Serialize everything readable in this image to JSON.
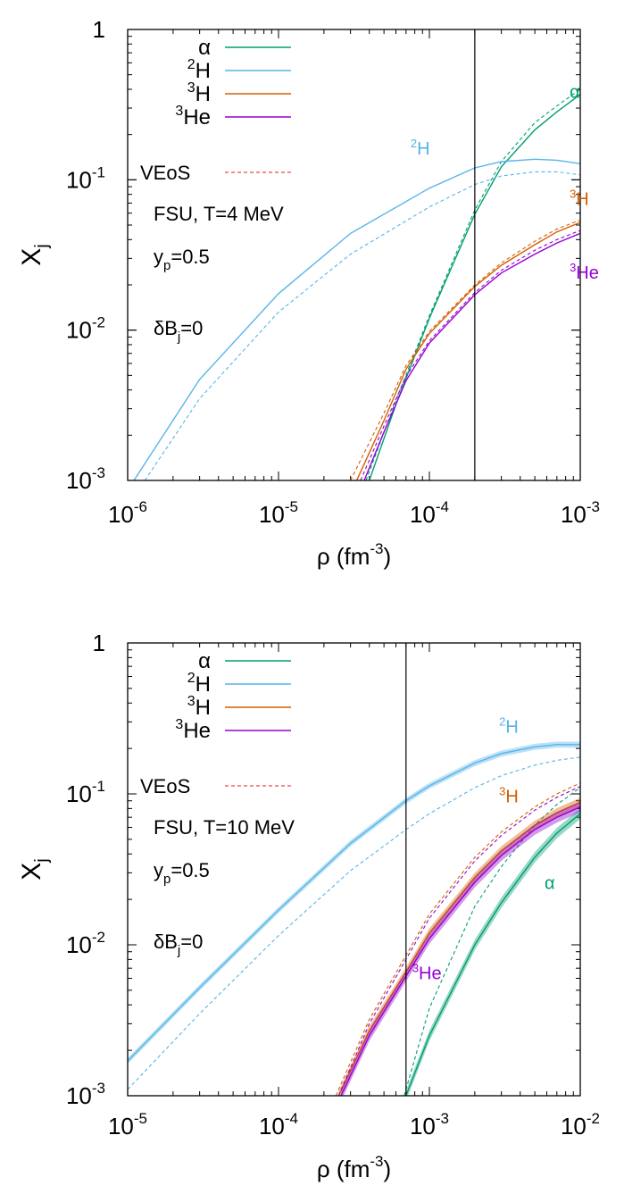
{
  "chart_data": [
    {
      "type": "line",
      "xscale": "log",
      "yscale": "log",
      "xlim": [
        1e-06,
        0.001
      ],
      "ylim": [
        0.001,
        1
      ],
      "xlabel": "ρ (fm",
      "xlabel_exp": "-3",
      "xlabel_close": ")",
      "ylabel": "X",
      "ylabel_sub": "j",
      "x_ticks": [
        {
          "base": "10",
          "exp": "-6"
        },
        {
          "base": "10",
          "exp": "-5"
        },
        {
          "base": "10",
          "exp": "-4"
        },
        {
          "base": "10",
          "exp": "-3"
        }
      ],
      "y_ticks": [
        {
          "base": "10",
          "exp": "-3"
        },
        {
          "base": "10",
          "exp": "-2"
        },
        {
          "base": "10",
          "exp": "-1"
        },
        {
          "base": "1",
          "exp": ""
        }
      ],
      "vline_x": 0.0002,
      "legend": [
        {
          "sup": "",
          "name": "α",
          "color": "#009e73"
        },
        {
          "sup": "2",
          "name": "H",
          "color": "#56b4e9"
        },
        {
          "sup": "3",
          "name": "H",
          "color": "#d55e00"
        },
        {
          "sup": "3",
          "name": "He",
          "color": "#9400d3"
        }
      ],
      "legend_placement": "top-left",
      "veos_label": "VEoS",
      "veos_color": "#e41a1c",
      "annotations": {
        "model": "FSU, T=4 MeV",
        "yp_main": "y",
        "yp_sub": "p",
        "yp_val": "=0.5",
        "db_main": "δB",
        "db_sub": "j",
        "db_val": "=0"
      },
      "series_labels": [
        {
          "sup": "",
          "name": "α",
          "color": "#009e73",
          "x": 0.00085,
          "y": 0.35
        },
        {
          "sup": "2",
          "name": "H",
          "color": "#56b4e9",
          "x": 7.5e-05,
          "y": 0.147
        },
        {
          "sup": "3",
          "name": "H",
          "color": "#d55e00",
          "x": 0.00085,
          "y": 0.068
        },
        {
          "sup": "3",
          "name": "He",
          "color": "#9400d3",
          "x": 0.00085,
          "y": 0.022
        }
      ],
      "series": [
        {
          "name": "α",
          "color": "#009e73",
          "style": "solid",
          "band": 0,
          "points": [
            [
              4e-05,
              0.001
            ],
            [
              6e-05,
              0.0032
            ],
            [
              0.0001,
              0.012
            ],
            [
              0.0002,
              0.059
            ],
            [
              0.0003,
              0.122
            ],
            [
              0.0005,
              0.215
            ],
            [
              0.0007,
              0.283
            ],
            [
              0.001,
              0.37
            ]
          ]
        },
        {
          "name": "α",
          "color": "#009e73",
          "style": "dashed",
          "band": 0,
          "points": [
            [
              3.8e-05,
              0.001
            ],
            [
              6e-05,
              0.0034
            ],
            [
              0.0001,
              0.0125
            ],
            [
              0.0002,
              0.063
            ],
            [
              0.0003,
              0.132
            ],
            [
              0.0005,
              0.24
            ],
            [
              0.0007,
              0.31
            ],
            [
              0.001,
              0.4
            ]
          ]
        },
        {
          "name": "2H",
          "color": "#56b4e9",
          "style": "solid",
          "band": 0,
          "points": [
            [
              1.1e-06,
              0.001
            ],
            [
              3e-06,
              0.0047
            ],
            [
              1e-05,
              0.0175
            ],
            [
              3e-05,
              0.044
            ],
            [
              0.0001,
              0.088
            ],
            [
              0.0002,
              0.12
            ],
            [
              0.0003,
              0.132
            ],
            [
              0.0005,
              0.137
            ],
            [
              0.0007,
              0.135
            ],
            [
              0.001,
              0.128
            ]
          ]
        },
        {
          "name": "2H",
          "color": "#56b4e9",
          "style": "dashed",
          "band": 0,
          "points": [
            [
              1.3e-06,
              0.001
            ],
            [
              3e-06,
              0.0035
            ],
            [
              1e-05,
              0.0132
            ],
            [
              3e-05,
              0.032
            ],
            [
              0.0001,
              0.066
            ],
            [
              0.0002,
              0.093
            ],
            [
              0.0003,
              0.106
            ],
            [
              0.0005,
              0.113
            ],
            [
              0.0007,
              0.113
            ],
            [
              0.001,
              0.108
            ]
          ]
        },
        {
          "name": "3H",
          "color": "#d55e00",
          "style": "solid",
          "band": 0,
          "points": [
            [
              3.3e-05,
              0.001
            ],
            [
              5e-05,
              0.0025
            ],
            [
              7e-05,
              0.0055
            ],
            [
              0.0001,
              0.0095
            ],
            [
              0.0002,
              0.0195
            ],
            [
              0.0003,
              0.027
            ],
            [
              0.0005,
              0.037
            ],
            [
              0.0007,
              0.045
            ],
            [
              0.001,
              0.052
            ]
          ]
        },
        {
          "name": "3H",
          "color": "#d55e00",
          "style": "dashed",
          "band": 0,
          "points": [
            [
              3e-05,
              0.001
            ],
            [
              5e-05,
              0.0028
            ],
            [
              7e-05,
              0.0058
            ],
            [
              0.0001,
              0.0098
            ],
            [
              0.0002,
              0.02
            ],
            [
              0.0003,
              0.028
            ],
            [
              0.0005,
              0.039
            ],
            [
              0.0007,
              0.047
            ],
            [
              0.001,
              0.054
            ]
          ]
        },
        {
          "name": "3He",
          "color": "#9400d3",
          "style": "solid",
          "band": 0,
          "points": [
            [
              3.7e-05,
              0.001
            ],
            [
              5e-05,
              0.0021
            ],
            [
              7e-05,
              0.0046
            ],
            [
              0.0001,
              0.0082
            ],
            [
              0.0002,
              0.0172
            ],
            [
              0.0003,
              0.024
            ],
            [
              0.0005,
              0.032
            ],
            [
              0.0007,
              0.038
            ],
            [
              0.001,
              0.044
            ]
          ]
        },
        {
          "name": "3He",
          "color": "#9400d3",
          "style": "dashed",
          "band": 0,
          "points": [
            [
              3.5e-05,
              0.001
            ],
            [
              5e-05,
              0.0023
            ],
            [
              7e-05,
              0.0049
            ],
            [
              0.0001,
              0.0085
            ],
            [
              0.0002,
              0.0178
            ],
            [
              0.0003,
              0.025
            ],
            [
              0.0005,
              0.034
            ],
            [
              0.0007,
              0.04
            ],
            [
              0.001,
              0.046
            ]
          ]
        }
      ]
    },
    {
      "type": "line",
      "xscale": "log",
      "yscale": "log",
      "xlim": [
        1e-05,
        0.01
      ],
      "ylim": [
        0.001,
        1
      ],
      "xlabel": "ρ (fm",
      "xlabel_exp": "-3",
      "xlabel_close": ")",
      "ylabel": "X",
      "ylabel_sub": "j",
      "x_ticks": [
        {
          "base": "10",
          "exp": "-5"
        },
        {
          "base": "10",
          "exp": "-4"
        },
        {
          "base": "10",
          "exp": "-3"
        },
        {
          "base": "10",
          "exp": "-2"
        }
      ],
      "y_ticks": [
        {
          "base": "10",
          "exp": "-3"
        },
        {
          "base": "10",
          "exp": "-2"
        },
        {
          "base": "10",
          "exp": "-1"
        },
        {
          "base": "1",
          "exp": ""
        }
      ],
      "vline_x": 0.0007,
      "legend": [
        {
          "sup": "",
          "name": "α",
          "color": "#009e73"
        },
        {
          "sup": "2",
          "name": "H",
          "color": "#56b4e9"
        },
        {
          "sup": "3",
          "name": "H",
          "color": "#d55e00"
        },
        {
          "sup": "3",
          "name": "He",
          "color": "#9400d3"
        }
      ],
      "legend_placement": "top-left",
      "veos_label": "VEoS",
      "veos_color": "#e41a1c",
      "annotations": {
        "model": "FSU, T=10 MeV",
        "yp_main": "y",
        "yp_sub": "p",
        "yp_val": "=0.5",
        "db_main": "δB",
        "db_sub": "j",
        "db_val": "=0"
      },
      "series_labels": [
        {
          "sup": "2",
          "name": "H",
          "color": "#56b4e9",
          "x": 0.0029,
          "y": 0.255
        },
        {
          "sup": "3",
          "name": "H",
          "color": "#d55e00",
          "x": 0.0029,
          "y": 0.088
        },
        {
          "sup": "",
          "name": "α",
          "color": "#009e73",
          "x": 0.0058,
          "y": 0.0235
        },
        {
          "sup": "3",
          "name": "He",
          "color": "#9400d3",
          "x": 0.00077,
          "y": 0.0059
        }
      ],
      "series": [
        {
          "name": "α",
          "color": "#009e73",
          "style": "solid",
          "band": 0.07,
          "points": [
            [
              0.0007,
              0.001
            ],
            [
              0.001,
              0.0025
            ],
            [
              0.002,
              0.01
            ],
            [
              0.003,
              0.019
            ],
            [
              0.005,
              0.038
            ],
            [
              0.007,
              0.055
            ],
            [
              0.01,
              0.074
            ]
          ]
        },
        {
          "name": "α",
          "color": "#009e73",
          "style": "dashed",
          "band": 0,
          "points": [
            [
              0.00068,
              0.001
            ],
            [
              0.001,
              0.0038
            ],
            [
              0.002,
              0.018
            ],
            [
              0.003,
              0.033
            ],
            [
              0.005,
              0.062
            ],
            [
              0.007,
              0.085
            ],
            [
              0.01,
              0.11
            ]
          ]
        },
        {
          "name": "2H",
          "color": "#56b4e9",
          "style": "solid",
          "band": 0.04,
          "points": [
            [
              1e-05,
              0.0017
            ],
            [
              3e-05,
              0.0052
            ],
            [
              0.0001,
              0.017
            ],
            [
              0.0003,
              0.047
            ],
            [
              0.0007,
              0.09
            ],
            [
              0.001,
              0.113
            ],
            [
              0.002,
              0.16
            ],
            [
              0.003,
              0.185
            ],
            [
              0.005,
              0.205
            ],
            [
              0.007,
              0.212
            ],
            [
              0.01,
              0.212
            ]
          ]
        },
        {
          "name": "2H",
          "color": "#56b4e9",
          "style": "dashed",
          "band": 0,
          "points": [
            [
              1e-05,
              0.0011
            ],
            [
              3e-05,
              0.0035
            ],
            [
              0.0001,
              0.0115
            ],
            [
              0.0003,
              0.031
            ],
            [
              0.0007,
              0.058
            ],
            [
              0.001,
              0.074
            ],
            [
              0.002,
              0.11
            ],
            [
              0.003,
              0.132
            ],
            [
              0.005,
              0.155
            ],
            [
              0.007,
              0.167
            ],
            [
              0.01,
              0.175
            ]
          ]
        },
        {
          "name": "3H",
          "color": "#d55e00",
          "style": "solid",
          "band": 0.06,
          "points": [
            [
              0.00025,
              0.001
            ],
            [
              0.0004,
              0.0027
            ],
            [
              0.0007,
              0.0066
            ],
            [
              0.001,
              0.012
            ],
            [
              0.002,
              0.028
            ],
            [
              0.003,
              0.042
            ],
            [
              0.005,
              0.062
            ],
            [
              0.007,
              0.075
            ],
            [
              0.01,
              0.088
            ]
          ]
        },
        {
          "name": "3H",
          "color": "#d55e00",
          "style": "dashed",
          "band": 0,
          "points": [
            [
              0.00024,
              0.001
            ],
            [
              0.0004,
              0.0032
            ],
            [
              0.0007,
              0.0085
            ],
            [
              0.001,
              0.016
            ],
            [
              0.002,
              0.038
            ],
            [
              0.003,
              0.056
            ],
            [
              0.005,
              0.082
            ],
            [
              0.007,
              0.1
            ],
            [
              0.01,
              0.118
            ]
          ]
        },
        {
          "name": "3He",
          "color": "#9400d3",
          "style": "solid",
          "band": 0.07,
          "points": [
            [
              0.00026,
              0.001
            ],
            [
              0.0004,
              0.0025
            ],
            [
              0.0007,
              0.0062
            ],
            [
              0.001,
              0.011
            ],
            [
              0.002,
              0.026
            ],
            [
              0.003,
              0.039
            ],
            [
              0.005,
              0.058
            ],
            [
              0.007,
              0.07
            ],
            [
              0.01,
              0.082
            ]
          ]
        },
        {
          "name": "3He",
          "color": "#9400d3",
          "style": "dashed",
          "band": 0,
          "points": [
            [
              0.00025,
              0.001
            ],
            [
              0.0004,
              0.003
            ],
            [
              0.0007,
              0.008
            ],
            [
              0.001,
              0.015
            ],
            [
              0.002,
              0.036
            ],
            [
              0.003,
              0.053
            ],
            [
              0.005,
              0.078
            ],
            [
              0.007,
              0.095
            ],
            [
              0.01,
              0.112
            ]
          ]
        }
      ]
    }
  ]
}
